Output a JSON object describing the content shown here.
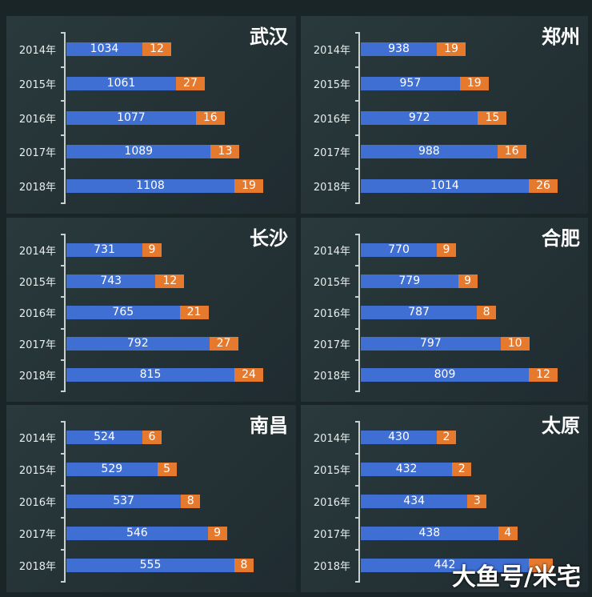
{
  "watermark": "大鱼号/米宅",
  "colors": {
    "population": "#3f6fd2",
    "increase": "#e57a2f",
    "background": "#1a2528"
  },
  "chart_data": [
    {
      "type": "bar",
      "stacked": true,
      "orientation": "horizontal",
      "title": "武汉",
      "categories": [
        "2014年",
        "2015年",
        "2016年",
        "2017年",
        "2018年"
      ],
      "series": [
        {
          "values": [
            1034,
            1061,
            1077,
            1089,
            1108
          ]
        },
        {
          "values": [
            12,
            27,
            16,
            13,
            19
          ]
        }
      ]
    },
    {
      "type": "bar",
      "stacked": true,
      "orientation": "horizontal",
      "title": "郑州",
      "categories": [
        "2014年",
        "2015年",
        "2016年",
        "2017年",
        "2018年"
      ],
      "series": [
        {
          "values": [
            938,
            957,
            972,
            988,
            1014
          ]
        },
        {
          "values": [
            19,
            19,
            15,
            16,
            26
          ]
        }
      ]
    },
    {
      "type": "bar",
      "stacked": true,
      "orientation": "horizontal",
      "title": "长沙",
      "categories": [
        "2014年",
        "2015年",
        "2016年",
        "2017年",
        "2018年"
      ],
      "series": [
        {
          "values": [
            731,
            743,
            765,
            792,
            815
          ]
        },
        {
          "values": [
            9,
            12,
            21,
            27,
            24
          ]
        }
      ]
    },
    {
      "type": "bar",
      "stacked": true,
      "orientation": "horizontal",
      "title": "合肥",
      "categories": [
        "2014年",
        "2015年",
        "2016年",
        "2017年",
        "2018年"
      ],
      "series": [
        {
          "values": [
            770,
            779,
            787,
            797,
            809
          ]
        },
        {
          "values": [
            9,
            9,
            8,
            10,
            12
          ]
        }
      ]
    },
    {
      "type": "bar",
      "stacked": true,
      "orientation": "horizontal",
      "title": "南昌",
      "categories": [
        "2014年",
        "2015年",
        "2016年",
        "2017年",
        "2018年"
      ],
      "series": [
        {
          "values": [
            524,
            529,
            537,
            546,
            555
          ]
        },
        {
          "values": [
            6,
            5,
            8,
            9,
            8
          ]
        }
      ]
    },
    {
      "type": "bar",
      "stacked": true,
      "orientation": "horizontal",
      "title": "太原",
      "categories": [
        "2014年",
        "2015年",
        "2016年",
        "2017年",
        "2018年"
      ],
      "series": [
        {
          "values": [
            430,
            432,
            434,
            438,
            442
          ]
        },
        {
          "values": [
            2,
            2,
            3,
            4,
            null
          ]
        }
      ]
    }
  ]
}
